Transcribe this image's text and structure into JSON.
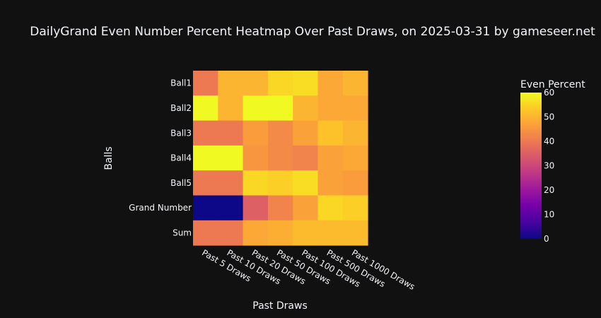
{
  "chart_data": {
    "type": "heatmap",
    "title": "DailyGrand Even Number Percent Heatmap Over Past Draws, on 2025-03-31 by gameseer.net",
    "xlabel": "Past Draws",
    "ylabel": "Balls",
    "x_categories": [
      "Past 5 Draws",
      "Past 10 Draws",
      "Past 20 Draws",
      "Past 50 Draws",
      "Past 100 Draws",
      "Past 500 Draws",
      "Past 1000 Draws"
    ],
    "y_categories": [
      "Ball1",
      "Ball2",
      "Ball3",
      "Ball4",
      "Ball5",
      "Grand Number",
      "Sum"
    ],
    "values": [
      [
        40,
        50,
        50,
        55,
        56,
        48,
        50
      ],
      [
        60,
        50,
        60,
        60,
        50,
        48,
        48
      ],
      [
        40,
        40,
        46,
        43,
        47,
        52,
        50
      ],
      [
        60,
        60,
        45,
        43,
        42,
        47,
        48
      ],
      [
        40,
        40,
        55,
        54,
        56,
        47,
        46
      ],
      [
        0,
        0,
        35,
        42,
        47,
        55,
        54
      ],
      [
        40,
        40,
        48,
        49,
        51,
        51,
        51
      ]
    ],
    "colorbar": {
      "title": "Even Percent",
      "range": [
        0,
        60
      ],
      "ticks": [
        0,
        10,
        20,
        30,
        40,
        50,
        60
      ]
    },
    "colorscale": [
      "#0d0887",
      "#46039f",
      "#7201a8",
      "#9c179e",
      "#bd3786",
      "#d8576b",
      "#ed7953",
      "#fb9f3a",
      "#fdca26",
      "#f0f921"
    ]
  }
}
